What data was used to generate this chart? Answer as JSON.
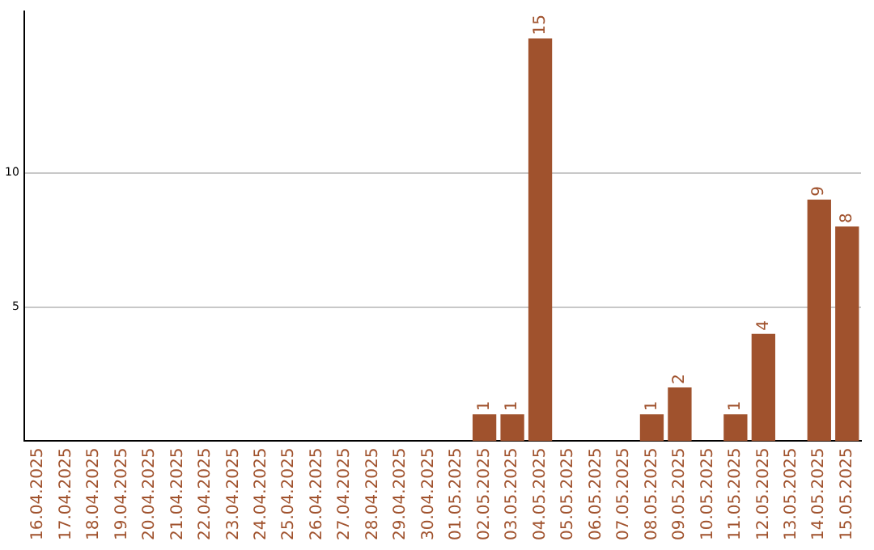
{
  "chart_data": {
    "type": "bar",
    "categories": [
      "16.04.2025",
      "17.04.2025",
      "18.04.2025",
      "19.04.2025",
      "20.04.2025",
      "21.04.2025",
      "22.04.2025",
      "23.04.2025",
      "24.04.2025",
      "25.04.2025",
      "26.04.2025",
      "27.04.2025",
      "28.04.2025",
      "29.04.2025",
      "30.04.2025",
      "01.05.2025",
      "02.05.2025",
      "03.05.2025",
      "04.05.2025",
      "05.05.2025",
      "06.05.2025",
      "07.05.2025",
      "08.05.2025",
      "09.05.2025",
      "10.05.2025",
      "11.05.2025",
      "12.05.2025",
      "13.05.2025",
      "14.05.2025",
      "15.05.2025"
    ],
    "values": [
      0,
      0,
      0,
      0,
      0,
      0,
      0,
      0,
      0,
      0,
      0,
      0,
      0,
      0,
      0,
      0,
      1,
      1,
      15,
      0,
      0,
      0,
      1,
      2,
      0,
      1,
      4,
      0,
      9,
      8
    ],
    "value_labels": [
      null,
      null,
      null,
      null,
      null,
      null,
      null,
      null,
      null,
      null,
      null,
      null,
      null,
      null,
      null,
      null,
      "1",
      "1",
      "15",
      null,
      null,
      null,
      "1",
      "2",
      null,
      "1",
      "4",
      null,
      "9",
      "8"
    ],
    "color": "#a0522d",
    "ylim": [
      0,
      16
    ],
    "yticks": [
      5,
      10
    ],
    "grid": "y",
    "legend": false
  }
}
